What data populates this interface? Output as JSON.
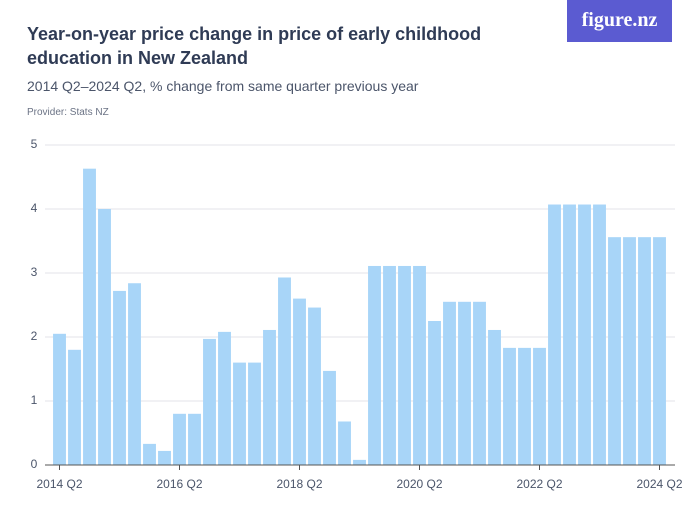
{
  "logo": "figure.nz",
  "chart_data": {
    "type": "bar",
    "title": "Year-on-year price change in price of early childhood education in New Zealand",
    "subtitle": "2014 Q2–2024 Q2, % change from same quarter previous year",
    "provider": "Provider: Stats NZ",
    "categories": [
      "2014 Q2",
      null,
      null,
      null,
      null,
      null,
      null,
      null,
      "2016 Q2",
      null,
      null,
      null,
      null,
      null,
      null,
      null,
      "2018 Q2",
      null,
      null,
      null,
      null,
      null,
      null,
      null,
      "2020 Q2",
      null,
      null,
      null,
      null,
      null,
      null,
      null,
      "2022 Q2",
      null,
      null,
      null,
      null,
      null,
      null,
      null,
      "2024 Q2"
    ],
    "values": [
      2.05,
      1.8,
      4.63,
      4.0,
      2.72,
      2.84,
      0.33,
      0.22,
      0.8,
      0.8,
      1.97,
      2.08,
      1.6,
      1.6,
      2.11,
      2.93,
      2.6,
      2.46,
      1.47,
      0.68,
      0.08,
      3.11,
      3.11,
      3.11,
      3.11,
      2.25,
      2.55,
      2.55,
      2.55,
      2.11,
      1.83,
      1.83,
      1.83,
      4.07,
      4.07,
      4.07,
      4.07,
      3.56,
      3.56,
      3.56,
      3.56
    ],
    "color": "#a8d5f8",
    "ylim": [
      0,
      5
    ],
    "yticks": [
      0,
      1,
      2,
      3,
      4,
      5
    ],
    "grid": true
  }
}
